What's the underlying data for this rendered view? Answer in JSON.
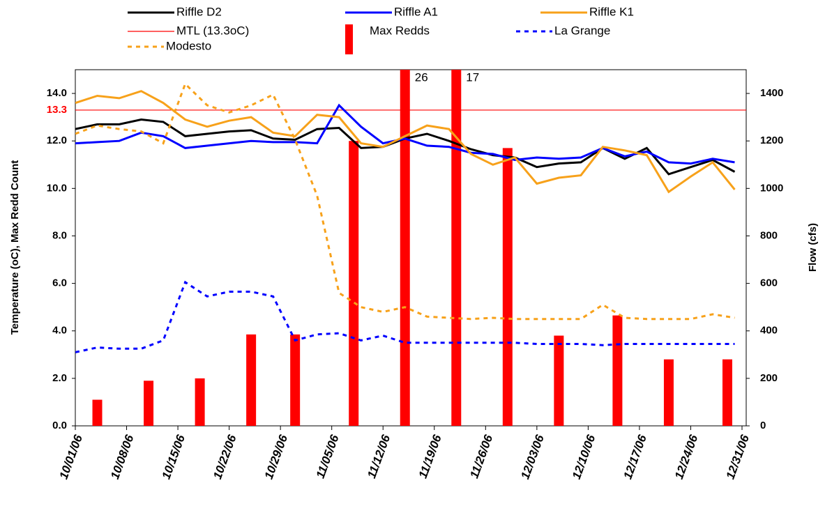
{
  "chart_data": {
    "type": "line",
    "x": [
      "10/01/06",
      "10/04/06",
      "10/07/06",
      "10/10/06",
      "10/13/06",
      "10/16/06",
      "10/19/06",
      "10/22/06",
      "10/25/06",
      "10/28/06",
      "10/31/06",
      "11/03/06",
      "11/06/06",
      "11/09/06",
      "11/12/06",
      "11/15/06",
      "11/18/06",
      "11/21/06",
      "11/24/06",
      "11/27/06",
      "11/30/06",
      "12/03/06",
      "12/06/06",
      "12/09/06",
      "12/12/06",
      "12/15/06",
      "12/18/06",
      "12/21/06",
      "12/24/06",
      "12/27/06",
      "12/30/06"
    ],
    "xlim": [
      "10/01/06",
      "12/31/06"
    ],
    "xticks": [
      "10/01/06",
      "10/08/06",
      "10/15/06",
      "10/22/06",
      "10/29/06",
      "11/05/06",
      "11/12/06",
      "11/19/06",
      "11/26/06",
      "12/03/06",
      "12/10/06",
      "12/17/06",
      "12/24/06",
      "12/31/06"
    ],
    "ylabel": "Temperature (oC), Max Redd Count",
    "y2label": "Flow (cfs)",
    "ylim": [
      0,
      15
    ],
    "yticks": [
      {
        "value": 0,
        "label": "0.0"
      },
      {
        "value": 2,
        "label": "2.0"
      },
      {
        "value": 4,
        "label": "4.0"
      },
      {
        "value": 6,
        "label": "6.0"
      },
      {
        "value": 8,
        "label": "8.0"
      },
      {
        "value": 10,
        "label": "10.0"
      },
      {
        "value": 12,
        "label": "12.0"
      },
      {
        "value": 14,
        "label": "14.0"
      }
    ],
    "y2lim": [
      0,
      1500
    ],
    "y2ticks": [
      0,
      200,
      400,
      600,
      800,
      1000,
      1200,
      1400
    ],
    "reference_line": {
      "name": "MTL (13.3oC)",
      "color": "#ff0000",
      "value": 13.3
    },
    "series": [
      {
        "name": "Riffle D2",
        "type": "line",
        "color": "#000000",
        "values": [
          12.5,
          12.7,
          12.7,
          12.9,
          12.8,
          12.2,
          12.3,
          12.4,
          12.45,
          12.1,
          12.05,
          12.5,
          12.55,
          11.7,
          11.75,
          12.1,
          12.3,
          12.0,
          11.65,
          11.4,
          11.3,
          10.9,
          11.05,
          11.1,
          11.7,
          11.25,
          11.7,
          10.6,
          10.9,
          11.2,
          10.7
        ]
      },
      {
        "name": "Riffle A1",
        "type": "line",
        "color": "#0000ff",
        "values": [
          11.9,
          11.95,
          12.0,
          12.35,
          12.2,
          11.7,
          11.8,
          11.9,
          12.0,
          11.95,
          11.95,
          11.9,
          13.5,
          12.6,
          11.9,
          12.1,
          11.8,
          11.75,
          11.5,
          11.45,
          11.2,
          11.3,
          11.25,
          11.3,
          11.7,
          11.35,
          11.55,
          11.1,
          11.05,
          11.25,
          11.1
        ]
      },
      {
        "name": "Riffle K1",
        "type": "line",
        "color": "#f7a11a",
        "values": [
          13.6,
          13.9,
          13.8,
          14.1,
          13.6,
          12.9,
          12.6,
          12.85,
          13.0,
          12.35,
          12.2,
          13.1,
          13.0,
          11.9,
          11.75,
          12.2,
          12.65,
          12.5,
          11.45,
          11.0,
          11.3,
          10.2,
          10.45,
          10.55,
          11.75,
          11.6,
          11.4,
          9.85,
          10.5,
          11.1,
          9.95
        ]
      },
      {
        "name": "Max Redds",
        "type": "bar",
        "color": "#ff0000",
        "x": [
          "10/04/06",
          "10/11/06",
          "10/18/06",
          "10/25/06",
          "10/31/06",
          "11/08/06",
          "11/15/06",
          "11/22/06",
          "11/29/06",
          "12/06/06",
          "12/14/06",
          "12/21/06",
          "12/29/06"
        ],
        "values": [
          1.1,
          1.9,
          2.0,
          3.85,
          3.85,
          12.0,
          26,
          17,
          11.7,
          3.8,
          4.65,
          2.8,
          2.8
        ]
      },
      {
        "name": "La Grange",
        "type": "line",
        "dash": true,
        "axis": "y2",
        "color": "#0000ff",
        "values": [
          310,
          330,
          325,
          325,
          360,
          605,
          545,
          565,
          565,
          545,
          360,
          385,
          390,
          360,
          380,
          350,
          350,
          350,
          350,
          350,
          350,
          345,
          345,
          345,
          340,
          345,
          345,
          345,
          345,
          345,
          345
        ]
      },
      {
        "name": "Modesto",
        "type": "line",
        "dash": true,
        "axis": "y2",
        "color": "#f7a11a",
        "values": [
          1230,
          1265,
          1250,
          1240,
          1190,
          1440,
          1350,
          1320,
          1350,
          1395,
          1205,
          970,
          560,
          500,
          480,
          500,
          460,
          455,
          450,
          455,
          450,
          450,
          450,
          450,
          510,
          455,
          450,
          450,
          450,
          470,
          455
        ]
      }
    ]
  }
}
